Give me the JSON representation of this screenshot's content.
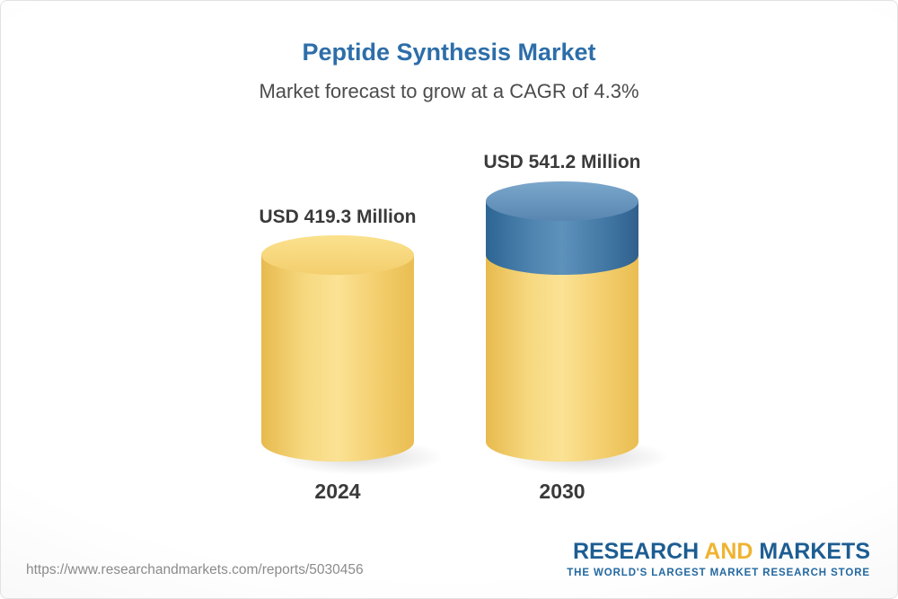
{
  "chart_data": {
    "type": "bar",
    "variant": "3d-cylinder",
    "title": "Peptide Synthesis Market",
    "subtitle": "Market forecast to grow at a CAGR of 4.3%",
    "cagr_percent": 4.3,
    "categories": [
      "2024",
      "2030"
    ],
    "values": [
      419.3,
      541.2
    ],
    "value_labels": [
      "USD 419.3 Million",
      "USD 541.2 Million"
    ],
    "unit": "USD Million",
    "ylim": [
      0,
      541.2
    ],
    "grid": false,
    "legend": false,
    "colors": {
      "base_segment_yellow": "#f3cf6e",
      "growth_segment_blue": "#3f74a1"
    }
  },
  "footer": {
    "url": "https://www.researchandmarkets.com/reports/5030456",
    "logo": {
      "word1": "RESEARCH",
      "word2": "AND",
      "word3": "MARKETS",
      "tagline": "THE WORLD'S LARGEST MARKET RESEARCH STORE"
    }
  },
  "colors": {
    "title_blue": "#2d6ea9",
    "label_dark": "#3a3a3a",
    "url_gray": "#8b8b8b",
    "logo_blue": "#1d5d92",
    "logo_gold": "#f0b331"
  }
}
